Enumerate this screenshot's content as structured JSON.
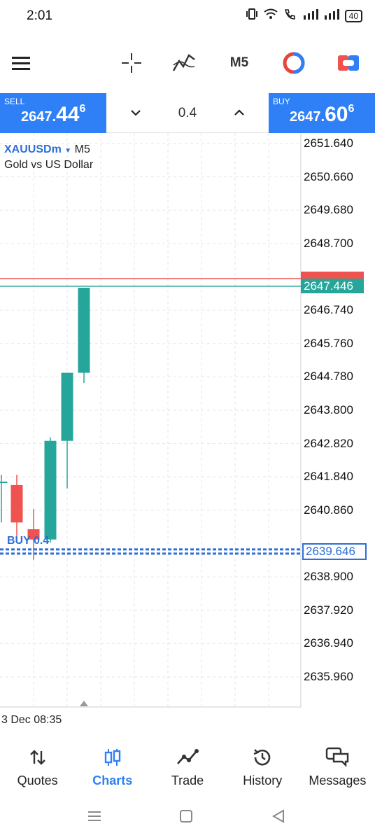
{
  "status_bar": {
    "time": "2:01",
    "battery": "40"
  },
  "toolbar": {
    "timeframe": "M5",
    "icons": [
      "menu-icon",
      "crosshair-icon",
      "indicators-icon",
      "timeframe",
      "color-scheme-icon",
      "one-click-trading-icon"
    ]
  },
  "trade_panel": {
    "sell": {
      "label": "SELL",
      "price_main": "2647.",
      "price_big": "44",
      "price_sup": "6"
    },
    "buy": {
      "label": "BUY",
      "price_main": "2647.",
      "price_big": "60",
      "price_sup": "6"
    },
    "volume": "0.4"
  },
  "chart": {
    "symbol": "XAUUSDm",
    "timeframe": "M5",
    "description": "Gold vs US Dollar",
    "price_labels": [
      "2651.640",
      "2650.660",
      "2649.680",
      "2648.700",
      "2646.740",
      "2645.760",
      "2644.780",
      "2643.800",
      "2642.820",
      "2641.840",
      "2640.860",
      "2638.900",
      "2637.920",
      "2636.940",
      "2635.960"
    ],
    "bid_tag": "2647.446",
    "position_tag": "2639.646",
    "position_label": "BUY 0.4",
    "date_label": "3 Dec 08:35",
    "colors": {
      "bull": "#26a69a",
      "bear": "#ef5350",
      "position": "#2f6fd6",
      "accent": "#2f80f7"
    }
  },
  "chart_data": {
    "type": "candlestick",
    "y_range": [
      2635.0,
      2652.0
    ],
    "candles": [
      {
        "open": 2641.7,
        "high": 2641.9,
        "low": 2640.5,
        "close": 2641.7
      },
      {
        "open": 2641.6,
        "high": 2641.9,
        "low": 2640.1,
        "close": 2640.5
      },
      {
        "open": 2640.3,
        "high": 2640.9,
        "low": 2639.4,
        "close": 2640.0
      },
      {
        "open": 2640.0,
        "high": 2643.0,
        "low": 2639.9,
        "close": 2642.9
      },
      {
        "open": 2642.9,
        "high": 2644.8,
        "low": 2641.5,
        "close": 2644.9
      },
      {
        "open": 2644.9,
        "high": 2647.4,
        "low": 2644.6,
        "close": 2647.4
      }
    ],
    "bid": 2647.446,
    "ask": 2647.606,
    "position_price": 2639.646
  },
  "bottom_nav": [
    {
      "label": "Quotes",
      "icon": "quotes-icon",
      "active": false
    },
    {
      "label": "Charts",
      "icon": "charts-icon",
      "active": true
    },
    {
      "label": "Trade",
      "icon": "trade-icon",
      "active": false
    },
    {
      "label": "History",
      "icon": "history-icon",
      "active": false
    },
    {
      "label": "Messages",
      "icon": "messages-icon",
      "active": false
    }
  ]
}
